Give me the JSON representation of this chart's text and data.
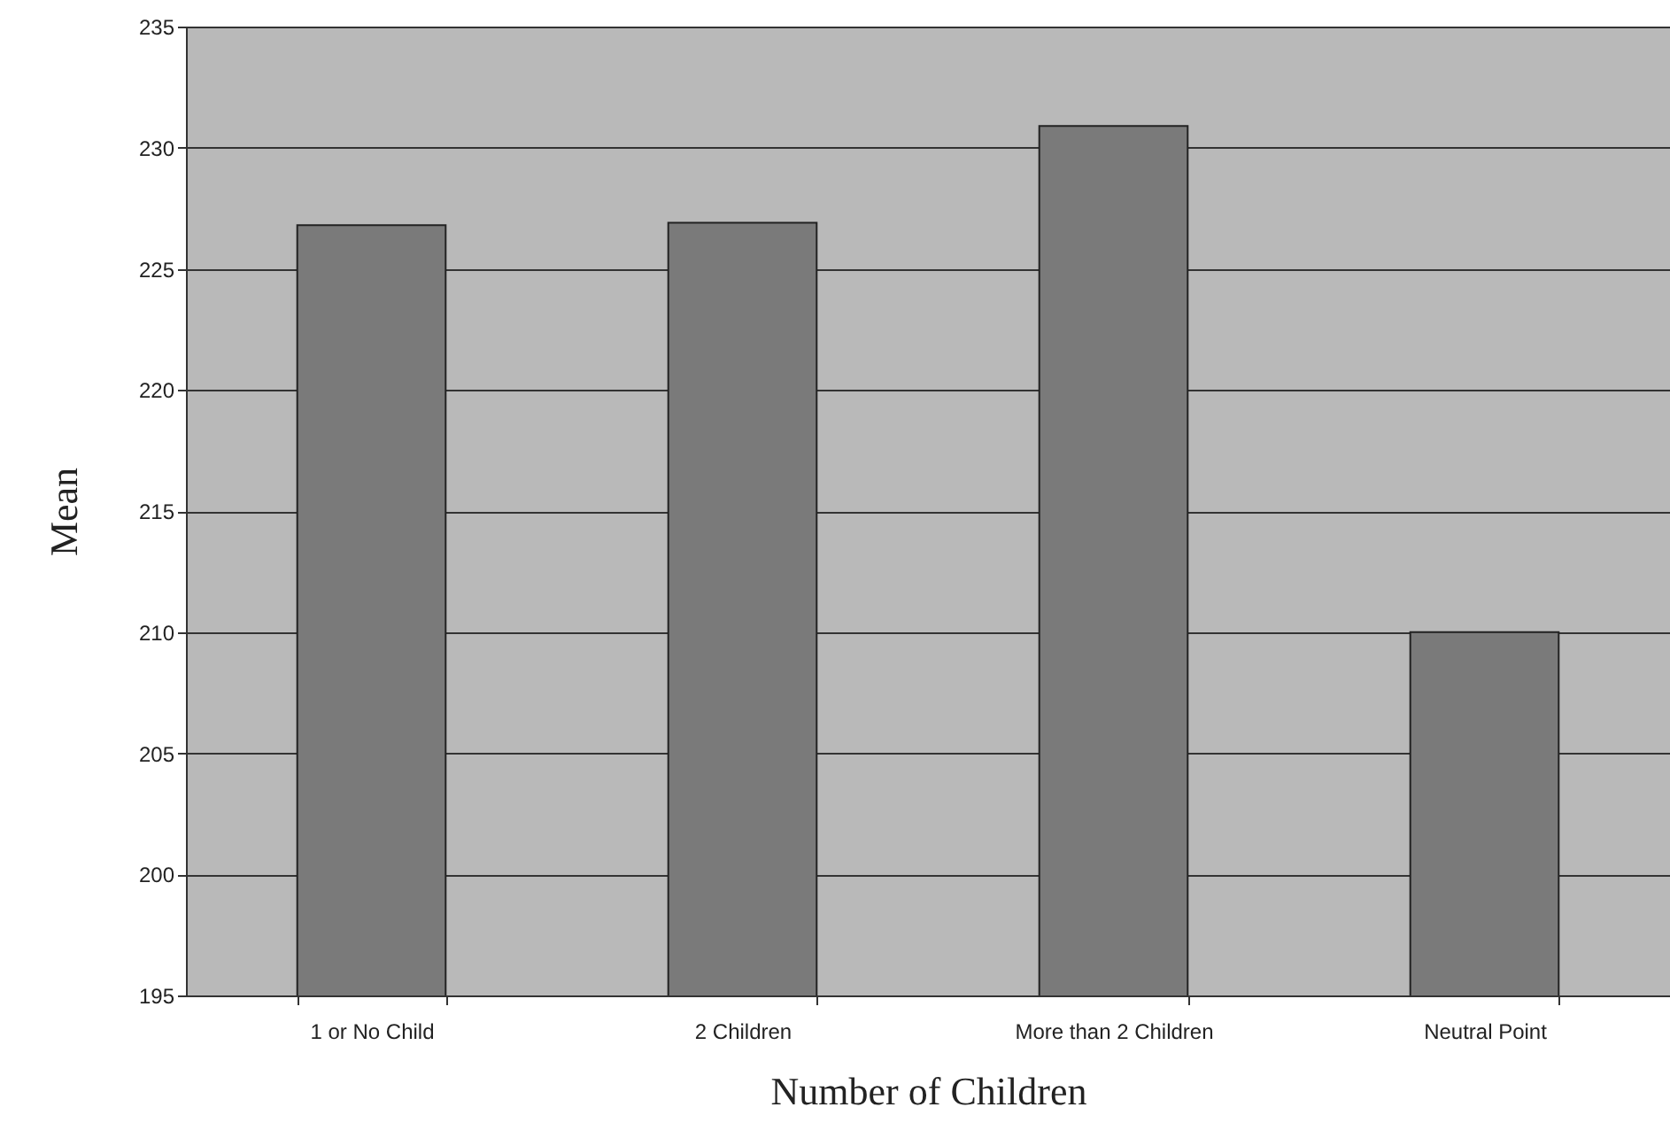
{
  "chart_data": {
    "type": "bar",
    "xlabel": "Number of Children",
    "ylabel": "Mean",
    "categories": [
      "1 or No Child",
      "2 Children",
      "More than 2 Children",
      "Neutral Point"
    ],
    "values": [
      226.8,
      226.9,
      230.9,
      210.0
    ],
    "color": "#7a7a7a",
    "ylim": [
      195,
      235
    ],
    "yticks": [
      195,
      200,
      205,
      210,
      215,
      220,
      225,
      230,
      235
    ],
    "grid": "y"
  }
}
